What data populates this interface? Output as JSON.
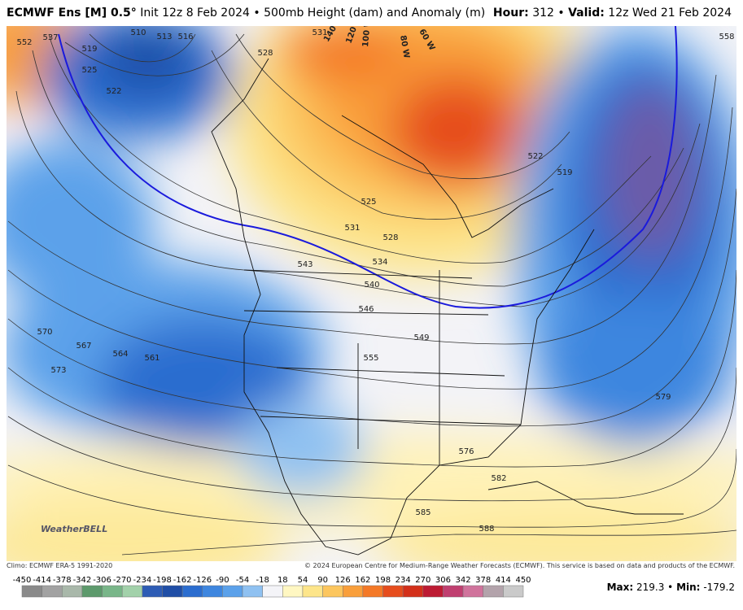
{
  "header": {
    "model": "ECMWF Ens [M] 0.5°",
    "init": "Init 12z 8 Feb 2024",
    "separator": "•",
    "product": "500mb Height (dam) and Anomaly (m)",
    "hour_label": "Hour:",
    "hour": "312",
    "valid_label": "Valid:",
    "valid": "12z Wed 21 Feb 2024"
  },
  "map": {
    "contours": [
      510,
      513,
      516,
      519,
      522,
      525,
      528,
      531,
      537,
      552,
      570,
      567,
      564,
      561,
      573,
      525,
      531,
      528,
      534,
      543,
      540,
      546,
      549,
      555,
      576,
      582,
      585,
      588,
      579,
      522,
      519,
      558
    ],
    "longitudes": [
      "140 W",
      "120 W",
      "100 W",
      "80 W",
      "60 W"
    ],
    "logo": "WeatherBELL"
  },
  "footer": {
    "climo": "Climo: ECMWF ERA-5 1991-2020",
    "copyright": "© 2024 European Centre for Medium-Range Weather Forecasts (ECMWF). This service is based on data and products of the ECMWF.",
    "max_label": "Max:",
    "max": 219.3,
    "min_label": "Min:",
    "min": -179.2
  },
  "colorbar": {
    "ticks": [
      -450,
      -414,
      -378,
      -342,
      -306,
      -270,
      -234,
      -198,
      -162,
      -126,
      -90,
      -54,
      -18,
      18,
      54,
      90,
      126,
      162,
      198,
      234,
      270,
      306,
      342,
      378,
      414,
      450
    ],
    "colors": [
      "#8a8a8a",
      "#a2a2a2",
      "#a9b8aa",
      "#5d9a6c",
      "#79b689",
      "#a2d1aa",
      "#2d5cb5",
      "#1f4ea6",
      "#2b6dcf",
      "#3e86df",
      "#5ba1ea",
      "#8fc1f1",
      "#f4f4f8",
      "#fff7c2",
      "#fde58a",
      "#fcc65e",
      "#f99f3b",
      "#f47927",
      "#e64d1d",
      "#d3301a",
      "#bd1b33",
      "#c03f70",
      "#d0739c",
      "#b3a3ab",
      "#cacaca"
    ]
  }
}
